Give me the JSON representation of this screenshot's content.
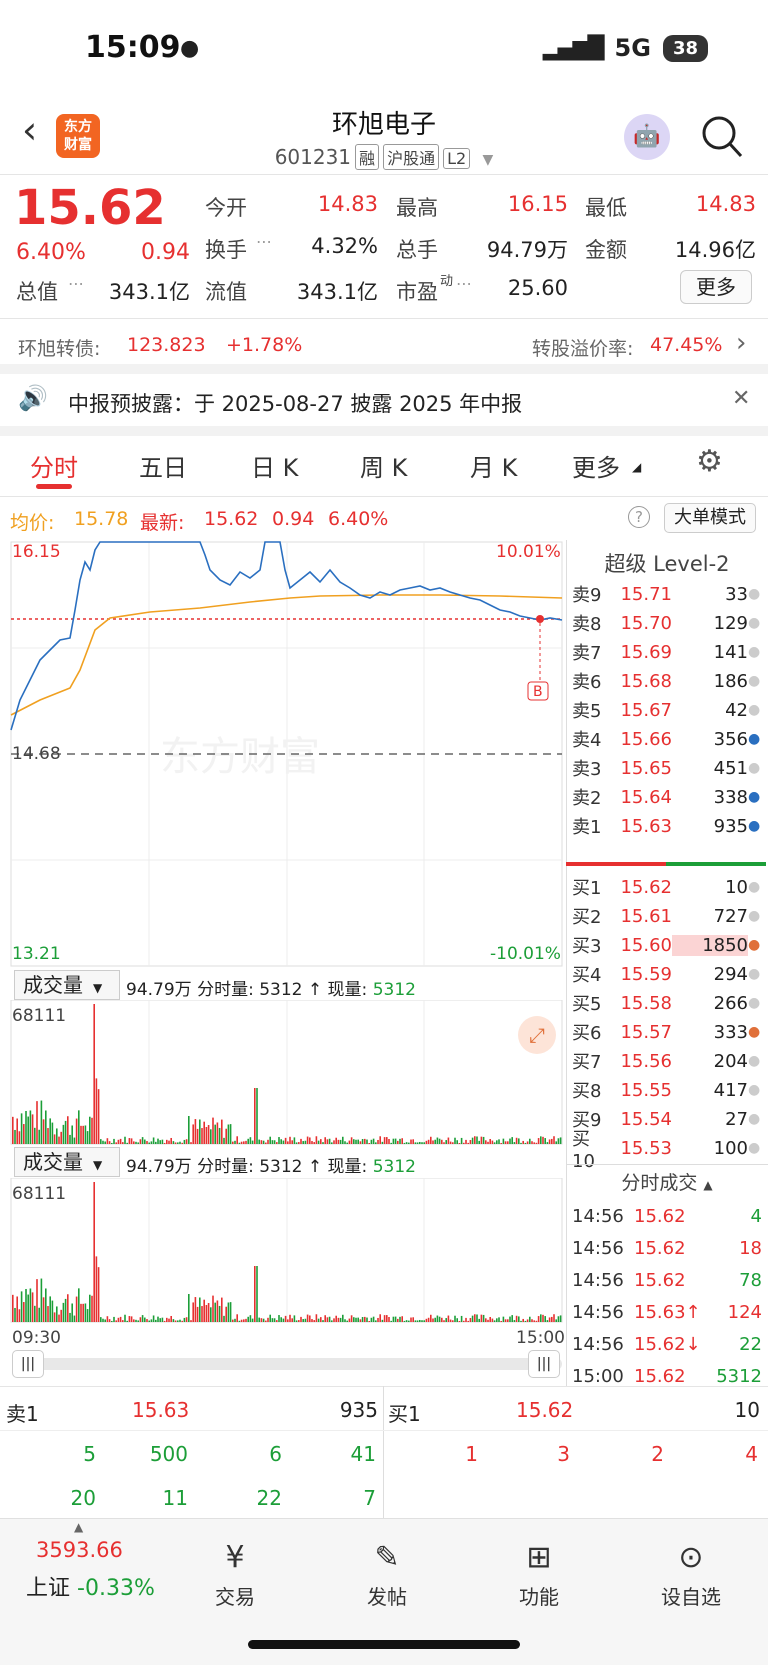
{
  "status": {
    "time": "15:09",
    "network": "5G",
    "battery": "38"
  },
  "header": {
    "title": "环旭电子",
    "code": "601231",
    "tags": [
      "融",
      "沪股通",
      "L2"
    ],
    "logo": "东方\n财富"
  },
  "quote": {
    "price": "15.62",
    "pct": "6.40%",
    "chg": "0.94",
    "stats": [
      {
        "label": "今开",
        "value": "14.83"
      },
      {
        "label": "最高",
        "value": "16.15"
      },
      {
        "label": "最低",
        "value": "14.83"
      },
      {
        "label": "换手",
        "value": "4.32%"
      },
      {
        "label": "总手",
        "value": "94.79万"
      },
      {
        "label": "金额",
        "value": "14.96亿"
      },
      {
        "label": "总值",
        "value": "343.1亿"
      },
      {
        "label": "流值",
        "value": "343.1亿"
      },
      {
        "label": "市盈",
        "value": "25.60"
      }
    ],
    "more_label": "更多",
    "pe_sup": "动"
  },
  "bond": {
    "label": "环旭转债:",
    "price": "123.823",
    "pct": "+1.78%",
    "premium_label": "转股溢价率:",
    "premium": "47.45%"
  },
  "notice": {
    "text": "中报预披露：于 2025-08-27 披露 2025 年中报"
  },
  "tabs": [
    "分时",
    "五日",
    "日 K",
    "周 K",
    "月 K",
    "更多"
  ],
  "chart_info": {
    "avg_label": "均价:",
    "avg": "15.78",
    "latest_label": "最新:",
    "latest": "15.62",
    "chg": "0.94",
    "pct": "6.40%",
    "big_order": "大单模式"
  },
  "chart_axis": {
    "high": "16.15",
    "mid": "14.68",
    "low": "13.21",
    "high_pct": "10.01%",
    "low_pct": "-10.01%",
    "watermark": "东方财富",
    "t_start": "09:30",
    "t_end": "15:00",
    "badge": "B"
  },
  "volume_panel": {
    "label": "成交量",
    "total": "94.79万",
    "minute_label": "分时量:",
    "minute": "5312",
    "now_label": "现量:",
    "now": "5312",
    "max": "68111"
  },
  "level2_title": "超级 Level-2",
  "asks": [
    {
      "label": "卖9",
      "price": "15.71",
      "vol": "33"
    },
    {
      "label": "卖8",
      "price": "15.70",
      "vol": "129"
    },
    {
      "label": "卖7",
      "price": "15.69",
      "vol": "141"
    },
    {
      "label": "卖6",
      "price": "15.68",
      "vol": "186"
    },
    {
      "label": "卖5",
      "price": "15.67",
      "vol": "42"
    },
    {
      "label": "卖4",
      "price": "15.66",
      "vol": "356"
    },
    {
      "label": "卖3",
      "price": "15.65",
      "vol": "451"
    },
    {
      "label": "卖2",
      "price": "15.64",
      "vol": "338"
    },
    {
      "label": "卖1",
      "price": "15.63",
      "vol": "935"
    }
  ],
  "bids": [
    {
      "label": "买1",
      "price": "15.62",
      "vol": "10"
    },
    {
      "label": "买2",
      "price": "15.61",
      "vol": "727"
    },
    {
      "label": "买3",
      "price": "15.60",
      "vol": "1850"
    },
    {
      "label": "买4",
      "price": "15.59",
      "vol": "294"
    },
    {
      "label": "买5",
      "price": "15.58",
      "vol": "266"
    },
    {
      "label": "买6",
      "price": "15.57",
      "vol": "333"
    },
    {
      "label": "买7",
      "price": "15.56",
      "vol": "204"
    },
    {
      "label": "买8",
      "price": "15.55",
      "vol": "417"
    },
    {
      "label": "买9",
      "price": "15.54",
      "vol": "27"
    },
    {
      "label": "买10",
      "price": "15.53",
      "vol": "100"
    }
  ],
  "trades_title": "分时成交",
  "trades": [
    {
      "time": "14:56",
      "price": "15.62",
      "vol": "4"
    },
    {
      "time": "14:56",
      "price": "15.62",
      "vol": "18"
    },
    {
      "time": "14:56",
      "price": "15.62",
      "vol": "78"
    },
    {
      "time": "14:56",
      "price": "15.63↑",
      "vol": "124"
    },
    {
      "time": "14:56",
      "price": "15.62↓",
      "vol": "22"
    },
    {
      "time": "15:00",
      "price": "15.62",
      "vol": "5312"
    }
  ],
  "depth": {
    "ask_label": "卖1",
    "ask_price": "15.63",
    "ask_vol": "935",
    "bid_label": "买1",
    "bid_price": "15.62",
    "bid_vol": "10",
    "ask_row1": [
      "5",
      "500",
      "6",
      "41"
    ],
    "ask_row2": [
      "20",
      "11",
      "22",
      "7"
    ],
    "bid_row1": [
      "1",
      "3",
      "2",
      "4"
    ]
  },
  "bottom": {
    "index": "3593.66",
    "index_name": "上证",
    "index_pct": "-0.33%",
    "nav": [
      "交易",
      "发帖",
      "功能",
      "设自选"
    ]
  }
}
